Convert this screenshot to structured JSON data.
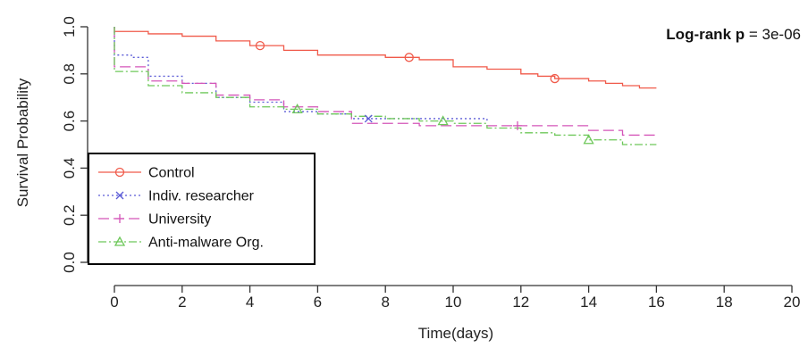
{
  "chart_data": {
    "type": "line",
    "title": "",
    "xlabel": "Time(days)",
    "ylabel": "Survival Probability",
    "xlim": [
      0,
      20
    ],
    "ylim": [
      0,
      1
    ],
    "x_ticks": [
      0,
      2,
      4,
      6,
      8,
      10,
      12,
      14,
      16,
      18,
      20
    ],
    "y_ticks": [
      "0.0",
      "0.2",
      "0.4",
      "0.6",
      "0.8",
      "1.0"
    ],
    "grid": false,
    "legend_position": "bottom-left",
    "annotation": {
      "bold": "Log-rank p",
      "rest": " = 3e-06"
    },
    "series": [
      {
        "name": "Control",
        "color": "#f05a4a",
        "dash": "solid",
        "marker": "circle",
        "steps": [
          [
            0,
            0.98
          ],
          [
            1,
            0.97
          ],
          [
            2,
            0.96
          ],
          [
            3,
            0.94
          ],
          [
            4,
            0.92
          ],
          [
            5,
            0.9
          ],
          [
            6,
            0.88
          ],
          [
            8,
            0.87
          ],
          [
            9,
            0.86
          ],
          [
            10,
            0.83
          ],
          [
            11,
            0.82
          ],
          [
            12,
            0.8
          ],
          [
            12.5,
            0.79
          ],
          [
            13,
            0.78
          ],
          [
            14,
            0.77
          ],
          [
            14.5,
            0.76
          ],
          [
            15,
            0.75
          ],
          [
            15.5,
            0.74
          ],
          [
            16,
            0.74
          ]
        ],
        "censor_x": [
          4.3,
          8.7,
          13
        ]
      },
      {
        "name": "Indiv. researcher",
        "color": "#5a5ad6",
        "dash": "dotted",
        "marker": "x",
        "steps": [
          [
            0,
            0.88
          ],
          [
            0.5,
            0.87
          ],
          [
            1,
            0.79
          ],
          [
            2,
            0.76
          ],
          [
            3,
            0.7
          ],
          [
            4,
            0.68
          ],
          [
            5,
            0.64
          ],
          [
            6,
            0.63
          ],
          [
            7,
            0.61
          ],
          [
            11,
            0.6
          ]
        ],
        "censor_x": [
          7.5
        ]
      },
      {
        "name": "University",
        "color": "#d455b8",
        "dash": "longdash",
        "marker": "plus",
        "steps": [
          [
            0,
            0.83
          ],
          [
            1,
            0.77
          ],
          [
            2,
            0.76
          ],
          [
            3,
            0.71
          ],
          [
            4,
            0.69
          ],
          [
            5,
            0.66
          ],
          [
            6,
            0.64
          ],
          [
            7,
            0.59
          ],
          [
            8,
            0.59
          ],
          [
            9,
            0.58
          ],
          [
            10,
            0.58
          ],
          [
            11,
            0.58
          ],
          [
            12,
            0.58
          ],
          [
            13,
            0.58
          ],
          [
            14,
            0.56
          ],
          [
            15,
            0.54
          ],
          [
            16,
            0.54
          ]
        ],
        "censor_x": [
          11.9
        ]
      },
      {
        "name": "Anti-malware Org.",
        "color": "#6ec85a",
        "dash": "dashdot",
        "marker": "triangle",
        "steps": [
          [
            0,
            0.81
          ],
          [
            1,
            0.75
          ],
          [
            2,
            0.72
          ],
          [
            3,
            0.7
          ],
          [
            4,
            0.66
          ],
          [
            5,
            0.65
          ],
          [
            6,
            0.63
          ],
          [
            7,
            0.62
          ],
          [
            8,
            0.61
          ],
          [
            9,
            0.6
          ],
          [
            10,
            0.59
          ],
          [
            11,
            0.57
          ],
          [
            12,
            0.55
          ],
          [
            13,
            0.54
          ],
          [
            14,
            0.52
          ],
          [
            15,
            0.5
          ],
          [
            16,
            0.5
          ]
        ],
        "censor_x": [
          5.4,
          9.7,
          14
        ]
      }
    ]
  }
}
